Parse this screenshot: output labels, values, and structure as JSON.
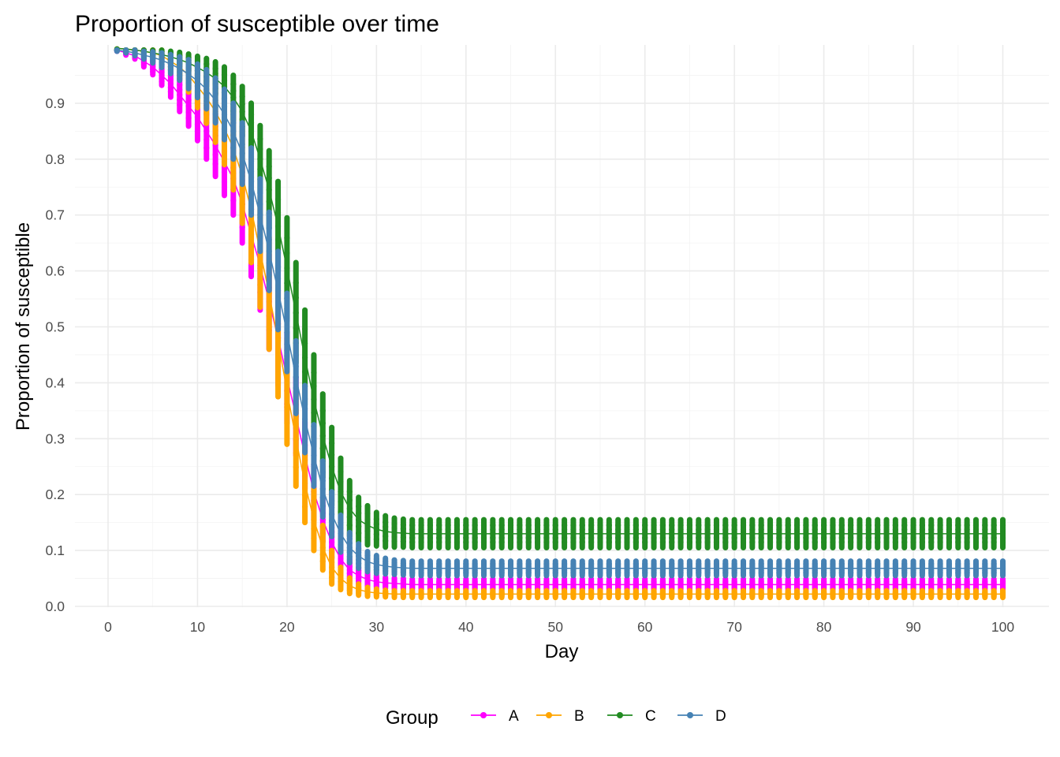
{
  "chart_data": {
    "type": "line",
    "title": "Proportion of susceptible over time",
    "xlabel": "Day",
    "ylabel": "Proportion of susceptible",
    "xlim": [
      0,
      100
    ],
    "ylim": [
      0,
      0.95
    ],
    "xticks": [
      "0",
      "10",
      "20",
      "30",
      "40",
      "50",
      "60",
      "70",
      "80",
      "90",
      "100"
    ],
    "yticks": [
      "0.0",
      "0.1",
      "0.2",
      "0.3",
      "0.4",
      "0.5",
      "0.6",
      "0.7",
      "0.8",
      "0.9"
    ],
    "grid": true,
    "legend": {
      "title": "Group",
      "position": "bottom"
    },
    "days": [
      1,
      2,
      3,
      4,
      5,
      6,
      7,
      8,
      9,
      10,
      11,
      12,
      13,
      14,
      15,
      16,
      17,
      18,
      19,
      20,
      21,
      22,
      23,
      24,
      25,
      26,
      27,
      28,
      29,
      30,
      31,
      32,
      33,
      34,
      35,
      36,
      37,
      38,
      39,
      40,
      41,
      42,
      43,
      44,
      45,
      46,
      47,
      48,
      49,
      50,
      51,
      52,
      53,
      54,
      55,
      56,
      57,
      58,
      59,
      60,
      61,
      62,
      63,
      64,
      65,
      66,
      67,
      68,
      69,
      70,
      71,
      72,
      73,
      74,
      75,
      76,
      77,
      78,
      79,
      80,
      81,
      82,
      83,
      84,
      85,
      86,
      87,
      88,
      89,
      90,
      91,
      92,
      93,
      94,
      95,
      96,
      97,
      98,
      99,
      100
    ],
    "series": [
      {
        "name": "A",
        "color": "#ff00ff",
        "center": [
          0.995,
          0.99,
          0.985,
          0.975,
          0.965,
          0.95,
          0.935,
          0.915,
          0.895,
          0.875,
          0.85,
          0.825,
          0.795,
          0.765,
          0.72,
          0.665,
          0.61,
          0.545,
          0.48,
          0.41,
          0.34,
          0.27,
          0.205,
          0.155,
          0.115,
          0.085,
          0.065,
          0.055,
          0.048,
          0.044,
          0.042,
          0.041,
          0.04,
          0.039,
          0.039,
          0.039,
          0.039,
          0.039,
          0.039,
          0.039,
          0.039,
          0.039,
          0.039,
          0.039,
          0.039,
          0.039,
          0.039,
          0.039,
          0.039,
          0.039,
          0.039,
          0.039,
          0.039,
          0.039,
          0.039,
          0.039,
          0.039,
          0.039,
          0.039,
          0.039,
          0.039,
          0.039,
          0.039,
          0.039,
          0.039,
          0.039,
          0.039,
          0.039,
          0.039,
          0.039,
          0.039,
          0.039,
          0.039,
          0.039,
          0.039,
          0.039,
          0.039,
          0.039,
          0.039,
          0.039,
          0.039,
          0.039,
          0.039,
          0.039,
          0.039,
          0.039,
          0.039,
          0.039,
          0.039,
          0.039,
          0.039,
          0.039,
          0.039,
          0.039,
          0.039,
          0.039,
          0.039,
          0.039,
          0.039,
          0.039
        ],
        "spread": [
          0.002,
          0.004,
          0.006,
          0.01,
          0.014,
          0.018,
          0.024,
          0.03,
          0.036,
          0.042,
          0.05,
          0.056,
          0.06,
          0.065,
          0.07,
          0.075,
          0.08,
          0.085,
          0.085,
          0.08,
          0.07,
          0.06,
          0.05,
          0.04,
          0.03,
          0.025,
          0.02,
          0.015,
          0.013,
          0.012,
          0.01,
          0.01,
          0.01,
          0.01,
          0.01,
          0.01,
          0.01,
          0.01,
          0.01,
          0.01,
          0.01,
          0.01,
          0.01,
          0.01,
          0.01,
          0.01,
          0.01,
          0.01,
          0.01,
          0.01,
          0.01,
          0.01,
          0.01,
          0.01,
          0.01,
          0.01,
          0.01,
          0.01,
          0.01,
          0.01,
          0.01,
          0.01,
          0.01,
          0.01,
          0.01,
          0.01,
          0.01,
          0.01,
          0.01,
          0.01,
          0.01,
          0.01,
          0.01,
          0.01,
          0.01,
          0.01,
          0.01,
          0.01,
          0.01,
          0.01,
          0.01,
          0.01,
          0.01,
          0.01,
          0.01,
          0.01,
          0.01,
          0.01,
          0.01,
          0.01,
          0.01,
          0.01,
          0.01,
          0.01,
          0.01,
          0.01,
          0.01,
          0.01,
          0.01,
          0.01
        ]
      },
      {
        "name": "B",
        "color": "#ffa500",
        "center": [
          0.998,
          0.997,
          0.995,
          0.993,
          0.99,
          0.985,
          0.975,
          0.965,
          0.95,
          0.93,
          0.91,
          0.885,
          0.855,
          0.82,
          0.77,
          0.71,
          0.635,
          0.56,
          0.475,
          0.385,
          0.3,
          0.22,
          0.155,
          0.105,
          0.07,
          0.05,
          0.037,
          0.03,
          0.026,
          0.024,
          0.023,
          0.022,
          0.022,
          0.022,
          0.022,
          0.022,
          0.022,
          0.022,
          0.022,
          0.022,
          0.022,
          0.022,
          0.022,
          0.022,
          0.022,
          0.022,
          0.022,
          0.022,
          0.022,
          0.022,
          0.022,
          0.022,
          0.022,
          0.022,
          0.022,
          0.022,
          0.022,
          0.022,
          0.022,
          0.022,
          0.022,
          0.022,
          0.022,
          0.022,
          0.022,
          0.022,
          0.022,
          0.022,
          0.022,
          0.022,
          0.022,
          0.022,
          0.022,
          0.022,
          0.022,
          0.022,
          0.022,
          0.022,
          0.022,
          0.022,
          0.022,
          0.022,
          0.022,
          0.022,
          0.022,
          0.022,
          0.022,
          0.022,
          0.022,
          0.022,
          0.022,
          0.022,
          0.022,
          0.022,
          0.022,
          0.022,
          0.022,
          0.022,
          0.022,
          0.022
        ],
        "spread": [
          0.001,
          0.002,
          0.003,
          0.005,
          0.008,
          0.012,
          0.016,
          0.022,
          0.03,
          0.038,
          0.046,
          0.055,
          0.065,
          0.075,
          0.085,
          0.095,
          0.1,
          0.1,
          0.1,
          0.095,
          0.085,
          0.07,
          0.055,
          0.04,
          0.03,
          0.02,
          0.014,
          0.01,
          0.008,
          0.007,
          0.006,
          0.006,
          0.006,
          0.006,
          0.006,
          0.006,
          0.006,
          0.006,
          0.006,
          0.006,
          0.006,
          0.006,
          0.006,
          0.006,
          0.006,
          0.006,
          0.006,
          0.006,
          0.006,
          0.006,
          0.006,
          0.006,
          0.006,
          0.006,
          0.006,
          0.006,
          0.006,
          0.006,
          0.006,
          0.006,
          0.006,
          0.006,
          0.006,
          0.006,
          0.006,
          0.006,
          0.006,
          0.006,
          0.006,
          0.006,
          0.006,
          0.006,
          0.006,
          0.006,
          0.006,
          0.006,
          0.006,
          0.006,
          0.006,
          0.006,
          0.006,
          0.006,
          0.006,
          0.006,
          0.006,
          0.006,
          0.006,
          0.006,
          0.006,
          0.006,
          0.006,
          0.006,
          0.006,
          0.006,
          0.006,
          0.006,
          0.006,
          0.006,
          0.006,
          0.006
        ]
      },
      {
        "name": "C",
        "color": "#228b22",
        "center": [
          0.998,
          0.997,
          0.995,
          0.993,
          0.99,
          0.987,
          0.983,
          0.978,
          0.972,
          0.964,
          0.955,
          0.944,
          0.93,
          0.91,
          0.885,
          0.85,
          0.8,
          0.745,
          0.68,
          0.605,
          0.525,
          0.445,
          0.37,
          0.305,
          0.25,
          0.205,
          0.175,
          0.155,
          0.145,
          0.138,
          0.134,
          0.132,
          0.131,
          0.13,
          0.13,
          0.13,
          0.13,
          0.13,
          0.13,
          0.13,
          0.13,
          0.13,
          0.13,
          0.13,
          0.13,
          0.13,
          0.13,
          0.13,
          0.13,
          0.13,
          0.13,
          0.13,
          0.13,
          0.13,
          0.13,
          0.13,
          0.13,
          0.13,
          0.13,
          0.13,
          0.13,
          0.13,
          0.13,
          0.13,
          0.13,
          0.13,
          0.13,
          0.13,
          0.13,
          0.13,
          0.13,
          0.13,
          0.13,
          0.13,
          0.13,
          0.13,
          0.13,
          0.13,
          0.13,
          0.13,
          0.13,
          0.13,
          0.13,
          0.13,
          0.13,
          0.13,
          0.13,
          0.13,
          0.13,
          0.13,
          0.13,
          0.13,
          0.13,
          0.13,
          0.13,
          0.13,
          0.13,
          0.13,
          0.13,
          0.13
        ],
        "spread": [
          0.001,
          0.002,
          0.003,
          0.004,
          0.006,
          0.008,
          0.01,
          0.013,
          0.016,
          0.02,
          0.025,
          0.03,
          0.035,
          0.04,
          0.045,
          0.05,
          0.06,
          0.07,
          0.08,
          0.09,
          0.09,
          0.085,
          0.08,
          0.075,
          0.07,
          0.06,
          0.05,
          0.04,
          0.035,
          0.03,
          0.028,
          0.026,
          0.025,
          0.025,
          0.025,
          0.025,
          0.025,
          0.025,
          0.025,
          0.025,
          0.025,
          0.025,
          0.025,
          0.025,
          0.025,
          0.025,
          0.025,
          0.025,
          0.025,
          0.025,
          0.025,
          0.025,
          0.025,
          0.025,
          0.025,
          0.025,
          0.025,
          0.025,
          0.025,
          0.025,
          0.025,
          0.025,
          0.025,
          0.025,
          0.025,
          0.025,
          0.025,
          0.025,
          0.025,
          0.025,
          0.025,
          0.025,
          0.025,
          0.025,
          0.025,
          0.025,
          0.025,
          0.025,
          0.025,
          0.025,
          0.025,
          0.025,
          0.025,
          0.025,
          0.025,
          0.025,
          0.025,
          0.025,
          0.025,
          0.025,
          0.025,
          0.025,
          0.025,
          0.025,
          0.025,
          0.025,
          0.025,
          0.025,
          0.025,
          0.025
        ]
      },
      {
        "name": "D",
        "color": "#4682b4",
        "center": [
          0.995,
          0.993,
          0.99,
          0.986,
          0.982,
          0.977,
          0.97,
          0.962,
          0.952,
          0.94,
          0.925,
          0.905,
          0.88,
          0.85,
          0.81,
          0.76,
          0.7,
          0.635,
          0.565,
          0.49,
          0.41,
          0.335,
          0.27,
          0.21,
          0.165,
          0.13,
          0.105,
          0.09,
          0.08,
          0.075,
          0.072,
          0.07,
          0.069,
          0.068,
          0.068,
          0.068,
          0.068,
          0.068,
          0.068,
          0.068,
          0.068,
          0.068,
          0.068,
          0.068,
          0.068,
          0.068,
          0.068,
          0.068,
          0.068,
          0.068,
          0.068,
          0.068,
          0.068,
          0.068,
          0.068,
          0.068,
          0.068,
          0.068,
          0.068,
          0.068,
          0.068,
          0.068,
          0.068,
          0.068,
          0.068,
          0.068,
          0.068,
          0.068,
          0.068,
          0.068,
          0.068,
          0.068,
          0.068,
          0.068,
          0.068,
          0.068,
          0.068,
          0.068,
          0.068,
          0.068,
          0.068,
          0.068,
          0.068,
          0.068,
          0.068,
          0.068,
          0.068,
          0.068,
          0.068,
          0.068,
          0.068,
          0.068,
          0.068,
          0.068,
          0.068,
          0.068,
          0.068,
          0.068,
          0.068,
          0.068
        ],
        "spread": [
          0.002,
          0.003,
          0.005,
          0.007,
          0.01,
          0.013,
          0.017,
          0.021,
          0.026,
          0.03,
          0.035,
          0.04,
          0.045,
          0.05,
          0.055,
          0.06,
          0.065,
          0.07,
          0.07,
          0.07,
          0.065,
          0.06,
          0.055,
          0.05,
          0.04,
          0.033,
          0.027,
          0.022,
          0.018,
          0.016,
          0.014,
          0.013,
          0.013,
          0.013,
          0.013,
          0.013,
          0.013,
          0.013,
          0.013,
          0.013,
          0.013,
          0.013,
          0.013,
          0.013,
          0.013,
          0.013,
          0.013,
          0.013,
          0.013,
          0.013,
          0.013,
          0.013,
          0.013,
          0.013,
          0.013,
          0.013,
          0.013,
          0.013,
          0.013,
          0.013,
          0.013,
          0.013,
          0.013,
          0.013,
          0.013,
          0.013,
          0.013,
          0.013,
          0.013,
          0.013,
          0.013,
          0.013,
          0.013,
          0.013,
          0.013,
          0.013,
          0.013,
          0.013,
          0.013,
          0.013,
          0.013,
          0.013,
          0.013,
          0.013,
          0.013,
          0.013,
          0.013,
          0.013,
          0.013,
          0.013,
          0.013,
          0.013,
          0.013,
          0.013,
          0.013,
          0.013,
          0.013,
          0.013,
          0.013,
          0.013
        ]
      }
    ]
  }
}
